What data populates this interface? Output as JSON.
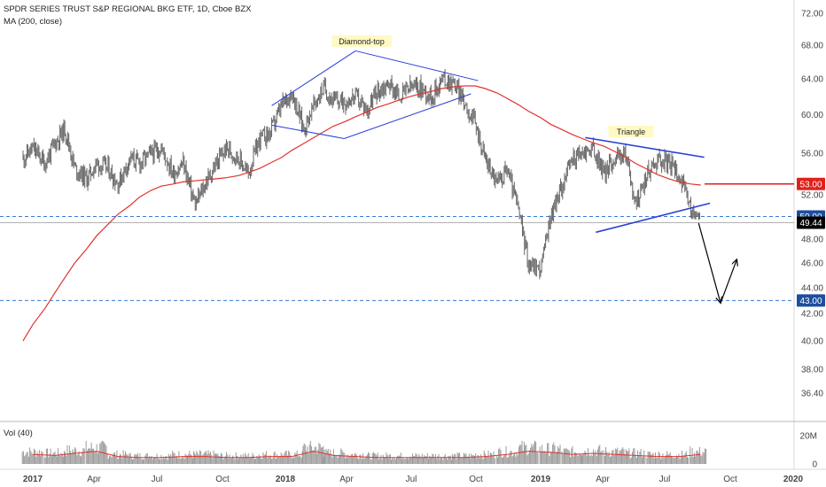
{
  "header": {
    "symbol_title": "SPDR SERIES TRUST S&P REGIONAL BKG ETF, 1D, Cboe BZX",
    "ma_label": "MA (200, close)",
    "volume_label": "Vol (40)"
  },
  "annotations": {
    "diamond_top": "Diamond-top",
    "triangle": "Triangle"
  },
  "price_axis": {
    "ticks": [
      "72.00",
      "68.00",
      "64.00",
      "60.00",
      "56.00",
      "52.00",
      "48.00",
      "46.00",
      "44.00",
      "42.00",
      "40.00",
      "38.00",
      "36.40"
    ],
    "tick_values": [
      72,
      68,
      64,
      60,
      56,
      52,
      48,
      46,
      44,
      42,
      40,
      38,
      36.4
    ],
    "axis_range": [
      35.5,
      72.8
    ],
    "scale": "log"
  },
  "volume_axis": {
    "ticks": [
      "20M",
      "0"
    ],
    "tick_values": [
      20,
      0
    ]
  },
  "time_axis": {
    "labels": [
      "2017",
      "Apr",
      "Jul",
      "Oct",
      "2018",
      "Apr",
      "Jul",
      "Oct",
      "2019",
      "Apr",
      "Jul",
      "Oct",
      "2020"
    ],
    "bold": [
      true,
      false,
      false,
      false,
      true,
      false,
      false,
      false,
      true,
      false,
      false,
      false,
      true
    ]
  },
  "level_badges": [
    {
      "text": "53.00",
      "color": "#e0201b",
      "value": 53.0
    },
    {
      "text": "50.00",
      "color": "#1d4e9e",
      "value": 50.0
    },
    {
      "text": "49.44",
      "color": "#000000",
      "value": 49.44
    },
    {
      "text": "43.00",
      "color": "#1d4e9e",
      "value": 43.0
    }
  ],
  "colors": {
    "candles": "#6b6b6b",
    "ma": "#e0332d",
    "trendlines": "#2b3fd6",
    "dashed_levels": "#3a7bd5",
    "resistance": "#e0201b",
    "projection_arrow": "#000000",
    "volume_bars": "#9a9a9a"
  },
  "chart_data": [
    {
      "type": "line",
      "title": "SPDR SERIES TRUST S&P REGIONAL BKG ETF, 1D, Cboe BZX",
      "xlabel": "",
      "ylabel": "",
      "ylim": [
        36.4,
        72.0
      ],
      "y_scale": "log",
      "grid": false,
      "x": [
        "2017-01-01",
        "2017-01-15",
        "2017-02-01",
        "2017-02-15",
        "2017-03-01",
        "2017-03-15",
        "2017-04-01",
        "2017-04-15",
        "2017-05-01",
        "2017-05-15",
        "2017-06-01",
        "2017-06-15",
        "2017-07-01",
        "2017-07-15",
        "2017-08-01",
        "2017-08-15",
        "2017-09-01",
        "2017-09-15",
        "2017-10-01",
        "2017-10-15",
        "2017-11-01",
        "2017-11-15",
        "2017-12-01",
        "2017-12-15",
        "2018-01-01",
        "2018-01-15",
        "2018-02-01",
        "2018-02-15",
        "2018-03-01",
        "2018-03-15",
        "2018-04-01",
        "2018-04-15",
        "2018-05-01",
        "2018-05-15",
        "2018-06-01",
        "2018-06-15",
        "2018-07-01",
        "2018-07-15",
        "2018-08-01",
        "2018-08-15",
        "2018-09-01",
        "2018-09-15",
        "2018-10-01",
        "2018-10-15",
        "2018-11-01",
        "2018-11-15",
        "2018-12-01",
        "2018-12-15",
        "2019-01-01",
        "2019-01-15",
        "2019-02-01",
        "2019-02-15",
        "2019-03-01",
        "2019-03-15",
        "2019-04-01",
        "2019-04-15",
        "2019-05-01",
        "2019-05-15",
        "2019-06-01",
        "2019-06-15",
        "2019-07-01",
        "2019-07-15",
        "2019-08-01",
        "2019-08-15"
      ],
      "series": [
        {
          "name": "SPDR SERIES TRUST S&P REGIONAL BKG ETF",
          "values": [
            55.5,
            56.5,
            55.0,
            57.0,
            58.5,
            54.5,
            53.5,
            55.0,
            54.5,
            53.0,
            55.5,
            55.0,
            56.0,
            56.5,
            54.0,
            55.0,
            51.0,
            53.0,
            55.0,
            56.5,
            55.5,
            54.0,
            57.5,
            58.0,
            61.0,
            62.5,
            58.5,
            61.0,
            63.0,
            61.5,
            61.5,
            62.0,
            60.5,
            62.5,
            63.5,
            62.0,
            63.0,
            63.0,
            62.0,
            64.0,
            63.5,
            61.5,
            59.0,
            55.5,
            53.0,
            54.5,
            50.5,
            46.0,
            45.5,
            50.0,
            53.0,
            55.5,
            56.0,
            56.5,
            54.0,
            55.5,
            56.0,
            51.0,
            54.0,
            55.5,
            55.0,
            54.0,
            50.5,
            49.44
          ]
        },
        {
          "name": "MA (200, close)",
          "values": [
            40.0,
            41.2,
            42.4,
            43.6,
            44.8,
            46.0,
            47.2,
            48.3,
            49.3,
            50.2,
            51.0,
            51.8,
            52.4,
            52.8,
            53.0,
            53.2,
            53.3,
            53.4,
            53.5,
            53.6,
            53.8,
            54.1,
            54.5,
            55.0,
            55.6,
            56.3,
            57.0,
            57.6,
            58.2,
            58.8,
            59.3,
            59.8,
            60.3,
            60.8,
            61.2,
            61.6,
            62.0,
            62.3,
            62.6,
            62.9,
            63.1,
            63.2,
            63.2,
            62.9,
            62.4,
            61.8,
            61.1,
            60.4,
            59.7,
            59.0,
            58.4,
            57.9,
            57.5,
            57.1,
            56.7,
            56.2,
            55.6,
            55.0,
            54.4,
            53.9,
            53.5,
            53.2,
            53.0,
            52.9
          ]
        }
      ]
    },
    {
      "type": "bar",
      "title": "Vol (40)",
      "ylim": [
        0,
        20
      ],
      "y_unit": "M",
      "x": [
        "2017-01",
        "2017-02",
        "2017-03",
        "2017-04",
        "2017-05",
        "2017-06",
        "2017-07",
        "2017-08",
        "2017-09",
        "2017-10",
        "2017-11",
        "2017-12",
        "2018-01",
        "2018-02",
        "2018-03",
        "2018-04",
        "2018-05",
        "2018-06",
        "2018-07",
        "2018-08",
        "2018-09",
        "2018-10",
        "2018-11",
        "2018-12",
        "2019-01",
        "2019-02",
        "2019-03",
        "2019-04",
        "2019-05",
        "2019-06",
        "2019-07",
        "2019-08"
      ],
      "series": [
        {
          "name": "Vol (40)",
          "values": [
            9,
            8,
            10,
            12,
            7,
            6,
            6,
            7,
            7,
            6,
            6,
            7,
            7,
            12,
            8,
            7,
            6,
            6,
            6,
            6,
            6,
            7,
            9,
            12,
            11,
            9,
            10,
            9,
            8,
            7,
            7,
            9
          ]
        }
      ]
    }
  ]
}
